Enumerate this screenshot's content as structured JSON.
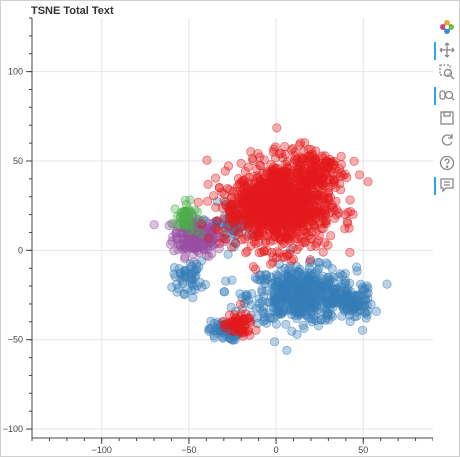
{
  "title": "TSNE Total Text",
  "toolbar": {
    "tools": [
      {
        "name": "bokeh-logo-icon",
        "active": false
      },
      {
        "name": "pan-icon",
        "active": true
      },
      {
        "name": "box-zoom-icon",
        "active": false
      },
      {
        "name": "wheel-zoom-icon",
        "active": true
      },
      {
        "name": "save-icon",
        "active": false
      },
      {
        "name": "reset-icon",
        "active": false
      },
      {
        "name": "help-icon",
        "active": false
      },
      {
        "name": "hover-icon",
        "active": true
      }
    ]
  },
  "chart_data": {
    "type": "scatter",
    "title": "TSNE Total Text",
    "xlabel": "",
    "ylabel": "",
    "xlim": [
      -140,
      90
    ],
    "ylim": [
      -105,
      130
    ],
    "xticks": [
      -100,
      -50,
      0,
      50
    ],
    "yticks": [
      -100,
      -50,
      0,
      50,
      100
    ],
    "grid": true,
    "colors": {
      "red": "#e41a1c",
      "blue": "#377eb8",
      "green": "#4daf4a",
      "purple": "#984ea3"
    },
    "clusters": [
      {
        "color": "red",
        "center": [
          5,
          25
        ],
        "spread": [
          24,
          22
        ],
        "count": 900
      },
      {
        "color": "red",
        "center": [
          -15,
          25
        ],
        "spread": [
          18,
          14
        ],
        "count": 180
      },
      {
        "color": "red",
        "center": [
          20,
          45
        ],
        "spread": [
          18,
          12
        ],
        "count": 160
      },
      {
        "color": "red",
        "center": [
          -22,
          -42
        ],
        "spread": [
          8,
          6
        ],
        "count": 60
      },
      {
        "color": "blue",
        "center": [
          15,
          -25
        ],
        "spread": [
          28,
          14
        ],
        "count": 520
      },
      {
        "color": "blue",
        "center": [
          -30,
          -45
        ],
        "spread": [
          8,
          5
        ],
        "count": 70
      },
      {
        "color": "blue",
        "center": [
          45,
          -30
        ],
        "spread": [
          10,
          8
        ],
        "count": 90
      },
      {
        "color": "blue",
        "center": [
          -50,
          -15
        ],
        "spread": [
          8,
          8
        ],
        "count": 50
      },
      {
        "color": "blue",
        "center": [
          -25,
          15
        ],
        "spread": [
          10,
          10
        ],
        "count": 60
      },
      {
        "color": "purple",
        "center": [
          -45,
          8
        ],
        "spread": [
          13,
          10
        ],
        "count": 190
      },
      {
        "color": "green",
        "center": [
          -52,
          18
        ],
        "spread": [
          6,
          8
        ],
        "count": 45
      }
    ]
  }
}
